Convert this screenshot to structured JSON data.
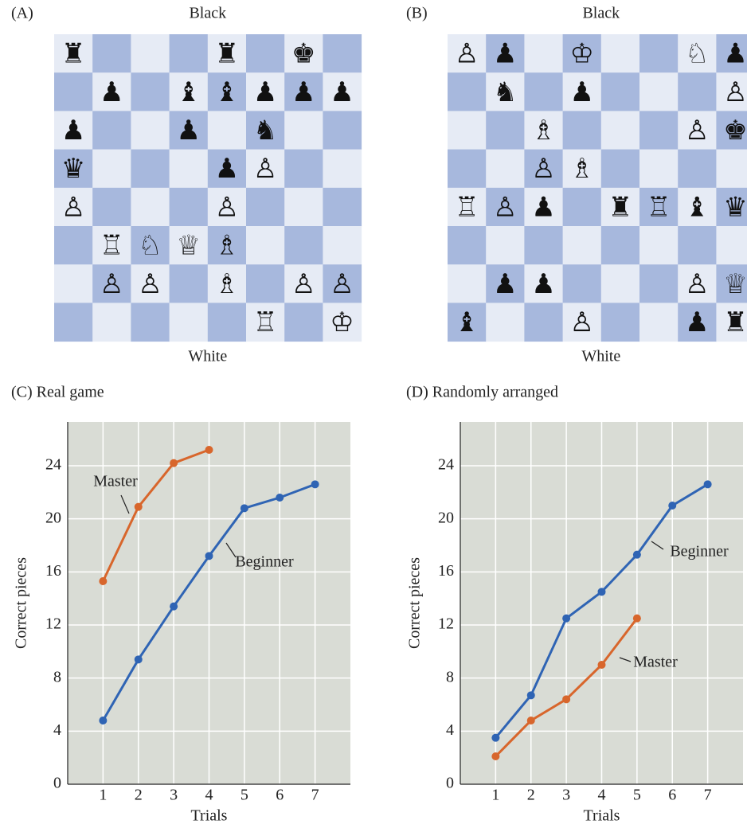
{
  "boards": [
    {
      "label": "(A)",
      "top": "Black",
      "bottom": "White",
      "squares": [
        [
          "♜",
          null,
          null,
          null,
          "♜",
          null,
          "♚",
          null
        ],
        [
          null,
          "♟",
          null,
          "♝",
          "♝",
          "♟",
          "♟",
          "♟"
        ],
        [
          "♟",
          null,
          null,
          "♟",
          null,
          "♞",
          null,
          null
        ],
        [
          "♛",
          null,
          null,
          null,
          "♟",
          "♙",
          null,
          null
        ],
        [
          "♙",
          null,
          null,
          null,
          "♙",
          null,
          null,
          null
        ],
        [
          null,
          "♖",
          "♘",
          "♕",
          "♗",
          null,
          null,
          null
        ],
        [
          null,
          "♙",
          "♙",
          null,
          "♗",
          null,
          "♙",
          "♙"
        ],
        [
          null,
          null,
          null,
          null,
          null,
          "♖",
          null,
          "♔"
        ]
      ]
    },
    {
      "label": "(B)",
      "top": "Black",
      "bottom": "White",
      "squares": [
        [
          "♙",
          "♟",
          null,
          "♔",
          null,
          null,
          "♘",
          "♟"
        ],
        [
          null,
          "♞",
          null,
          "♟",
          null,
          null,
          null,
          "♙"
        ],
        [
          null,
          null,
          "♗",
          null,
          null,
          null,
          "♙",
          "♚"
        ],
        [
          null,
          null,
          "♙",
          "♗",
          null,
          null,
          null,
          null
        ],
        [
          "♖",
          "♙",
          "♟",
          null,
          "♜",
          "♖",
          "♝",
          "♛"
        ],
        [
          null,
          null,
          null,
          null,
          null,
          null,
          null,
          null
        ],
        [
          null,
          "♟",
          "♟",
          null,
          null,
          null,
          "♙",
          "♕"
        ],
        [
          "♝",
          null,
          null,
          "♙",
          null,
          null,
          "♟",
          "♜"
        ]
      ]
    }
  ],
  "chart_data": [
    {
      "type": "line",
      "title": "(C) Real game",
      "x_label": "Trials",
      "y_label": "Correct pieces",
      "x": [
        1,
        2,
        3,
        4,
        5,
        6,
        7
      ],
      "series": [
        {
          "name": "Master",
          "color": "#d8662c",
          "values": [
            15.3,
            20.9,
            24.2,
            25.2,
            null,
            null,
            null
          ]
        },
        {
          "name": "Beginner",
          "color": "#2f64b4",
          "values": [
            4.8,
            9.4,
            13.4,
            17.2,
            20.8,
            21.6,
            22.6
          ]
        }
      ],
      "xlim": [
        0,
        8
      ],
      "xticks": [
        1,
        2,
        3,
        4,
        5,
        6,
        7
      ],
      "ylim": [
        0,
        27.3
      ],
      "yticks": [
        0,
        4,
        8,
        12,
        16,
        20,
        24
      ],
      "grid": true
    },
    {
      "type": "line",
      "title": "(D) Randomly arranged",
      "x_label": "Trials",
      "y_label": "Correct pieces",
      "x": [
        1,
        2,
        3,
        4,
        5,
        6,
        7
      ],
      "series": [
        {
          "name": "Beginner",
          "color": "#2f64b4",
          "values": [
            3.5,
            6.7,
            12.5,
            14.5,
            17.3,
            21.0,
            22.6
          ]
        },
        {
          "name": "Master",
          "color": "#d8662c",
          "values": [
            2.1,
            4.8,
            6.4,
            9.0,
            12.5,
            null,
            null
          ]
        }
      ],
      "xlim": [
        0,
        8
      ],
      "xticks": [
        1,
        2,
        3,
        4,
        5,
        6,
        7
      ],
      "ylim": [
        0,
        27.3
      ],
      "yticks": [
        0,
        4,
        8,
        12,
        16,
        20,
        24
      ],
      "grid": true
    }
  ]
}
